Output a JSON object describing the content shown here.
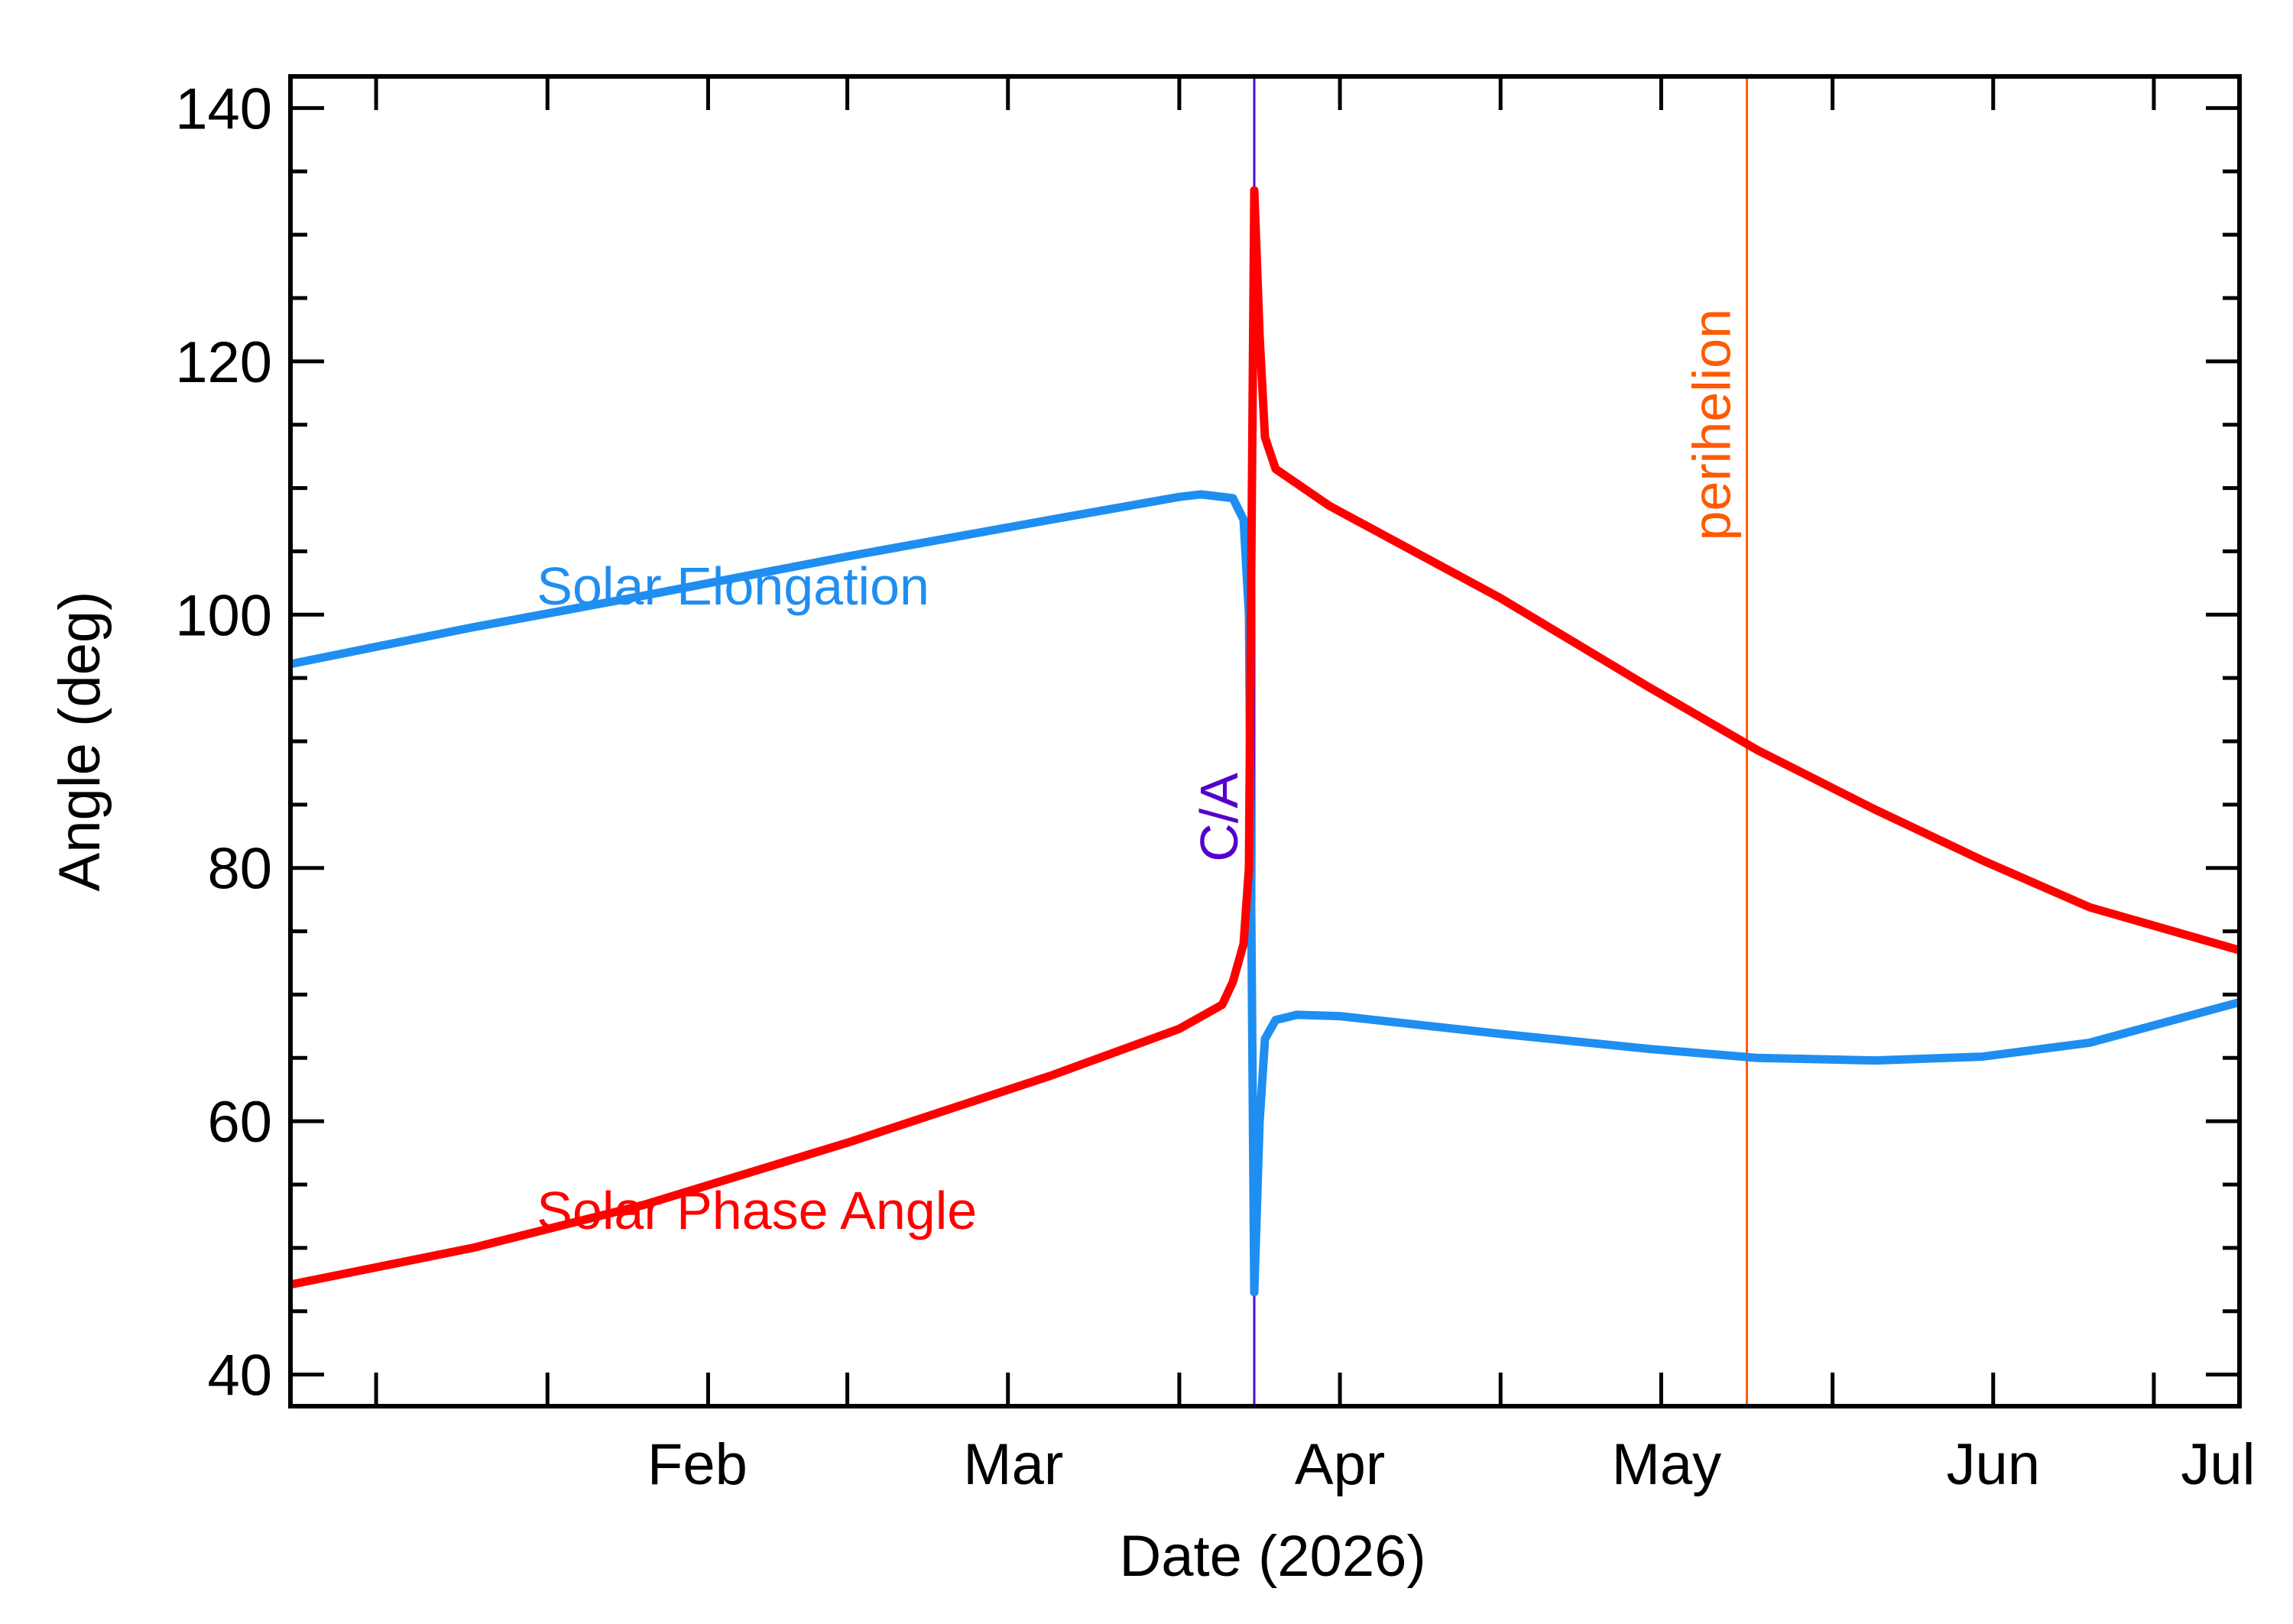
{
  "chart_data": {
    "type": "line",
    "xlabel": "Date (2026)",
    "ylabel": "Angle (deg)",
    "xlim": [
      "2026-01-08",
      "2026-07-09"
    ],
    "ylim": [
      37.5,
      142.5
    ],
    "x_ticks": [
      {
        "date": "2026-02-01",
        "label": "Feb"
      },
      {
        "date": "2026-03-01",
        "label": "Mar"
      },
      {
        "date": "2026-04-01",
        "label": "Apr"
      },
      {
        "date": "2026-05-01",
        "label": "May"
      },
      {
        "date": "2026-06-01",
        "label": "Jun"
      },
      {
        "date": "2026-07-01",
        "label": "Jul"
      }
    ],
    "y_ticks": [
      40,
      60,
      80,
      100,
      120,
      140
    ],
    "grid": false,
    "series": [
      {
        "name": "Solar Elongation",
        "color": "#1f8ef1",
        "points": [
          [
            "2026-01-08",
            96.1
          ],
          [
            "2026-01-25",
            99.0
          ],
          [
            "2026-02-10",
            101.5
          ],
          [
            "2026-03-01",
            104.6
          ],
          [
            "2026-03-20",
            107.5
          ],
          [
            "2026-04-01",
            109.3
          ],
          [
            "2026-04-03",
            109.5
          ],
          [
            "2026-04-06",
            109.2
          ],
          [
            "2026-04-07",
            107.5
          ],
          [
            "2026-04-07 12:00",
            100.0
          ],
          [
            "2026-04-08",
            46.5
          ],
          [
            "2026-04-08 12:00",
            60.0
          ],
          [
            "2026-04-09",
            66.5
          ],
          [
            "2026-04-10",
            68.0
          ],
          [
            "2026-04-12",
            68.4
          ],
          [
            "2026-04-16",
            68.3
          ],
          [
            "2026-05-01",
            66.9
          ],
          [
            "2026-05-15",
            65.7
          ],
          [
            "2026-05-25",
            65.0
          ],
          [
            "2026-06-05",
            64.8
          ],
          [
            "2026-06-15",
            65.1
          ],
          [
            "2026-06-25",
            66.2
          ],
          [
            "2026-07-09",
            69.4
          ]
        ]
      },
      {
        "name": "Solar Phase Angle",
        "color": "#ff0000",
        "points": [
          [
            "2026-01-08",
            47.1
          ],
          [
            "2026-01-25",
            50.0
          ],
          [
            "2026-02-10",
            53.4
          ],
          [
            "2026-03-01",
            58.3
          ],
          [
            "2026-03-20",
            63.6
          ],
          [
            "2026-04-01",
            67.3
          ],
          [
            "2026-04-05",
            69.2
          ],
          [
            "2026-04-06",
            71.0
          ],
          [
            "2026-04-07",
            74.0
          ],
          [
            "2026-04-07 12:00",
            80.0
          ],
          [
            "2026-04-08",
            133.5
          ],
          [
            "2026-04-08 12:00",
            122.0
          ],
          [
            "2026-04-09",
            114.0
          ],
          [
            "2026-04-10",
            111.5
          ],
          [
            "2026-04-15",
            108.6
          ],
          [
            "2026-05-01",
            101.3
          ],
          [
            "2026-05-15",
            94.2
          ],
          [
            "2026-05-25",
            89.3
          ],
          [
            "2026-06-05",
            84.6
          ],
          [
            "2026-06-15",
            80.6
          ],
          [
            "2026-06-25",
            76.9
          ],
          [
            "2026-07-09",
            73.5
          ]
        ]
      }
    ],
    "series_labels": [
      {
        "text": "Solar Elongation",
        "date": "2026-01-31",
        "value": 100.8
      },
      {
        "text": "Solar Phase Angle",
        "date": "2026-01-31",
        "value": 51.5
      }
    ],
    "events": [
      {
        "label": "C/A",
        "date": "2026-04-08",
        "color": "#5500cc",
        "label_value": 84
      },
      {
        "label": "perihelion",
        "date": "2026-05-24",
        "color": "#ff5a00",
        "label_value": 115
      }
    ]
  }
}
